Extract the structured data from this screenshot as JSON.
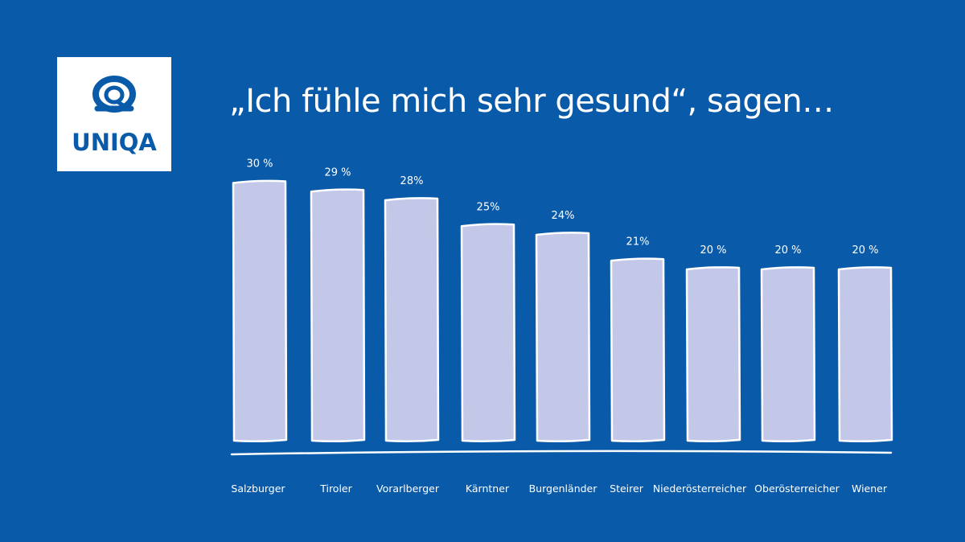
{
  "logo": {
    "text": "UNIQA"
  },
  "colors": {
    "background": "#0a5aaa",
    "bar_fill": "#c3c8e8",
    "bar_stroke": "#ffffff",
    "text": "#ffffff"
  },
  "chart_data": {
    "type": "bar",
    "title": "„Ich fühle mich sehr gesund“, sagen…",
    "xlabel": "",
    "ylabel": "",
    "ylim": [
      0,
      30
    ],
    "grid": false,
    "categories": [
      "Salzburger",
      "Tiroler",
      "Vorarlberger",
      "Kärntner",
      "Burgenländer",
      "Steirer",
      "Niederösterreicher",
      "Oberösterreicher",
      "Wiener"
    ],
    "values": [
      30,
      29,
      28,
      25,
      24,
      21,
      20,
      20,
      20
    ],
    "value_labels": [
      "30 %",
      "29 %",
      "28%",
      "25%",
      "24%",
      "21%",
      "20 %",
      "20 %",
      "20 %"
    ]
  }
}
